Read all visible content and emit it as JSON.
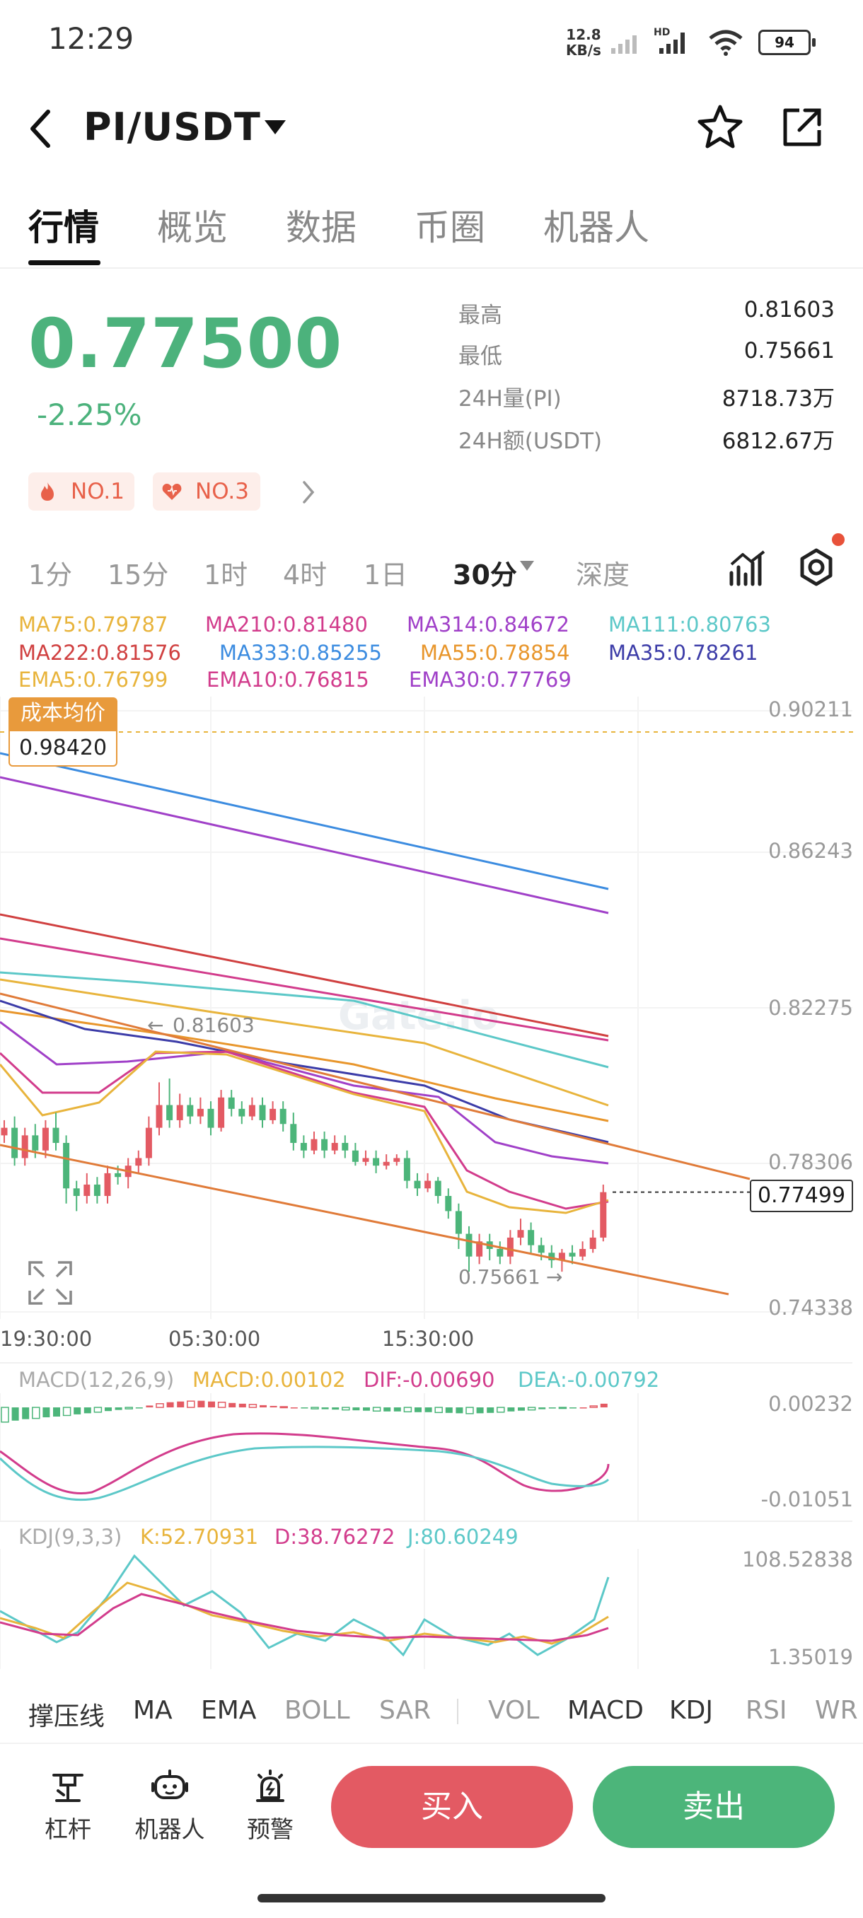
{
  "status_bar": {
    "time": "12:29",
    "net_speed_value": "12.8",
    "net_speed_unit": "KB/s",
    "battery": "94"
  },
  "header": {
    "pair": "PI/USDT"
  },
  "tabs": [
    "行情",
    "概览",
    "数据",
    "币圈",
    "机器人"
  ],
  "ticker": {
    "price": "0.77500",
    "change": "-2.25%",
    "stats": [
      {
        "label": "最高",
        "value": "0.81603"
      },
      {
        "label": "最低",
        "value": "0.75661"
      },
      {
        "label": "24H量(PI)",
        "value": "8718.73万"
      },
      {
        "label": "24H额(USDT)",
        "value": "6812.67万"
      }
    ],
    "badges": [
      "NO.1",
      "NO.3"
    ]
  },
  "timeframes": [
    "1分",
    "15分",
    "1时",
    "4时",
    "1日",
    "30分",
    "深度"
  ],
  "ma_legend": [
    {
      "text": "MA75:0.79787",
      "color": "#e8b43c"
    },
    {
      "text": "MA210:0.81480",
      "color": "#d23c8c"
    },
    {
      "text": "MA314:0.84672",
      "color": "#a040c8"
    },
    {
      "text": "MA111:0.80763",
      "color": "#5cc8c8"
    },
    {
      "text": "MA222:0.81576",
      "color": "#d04040"
    },
    {
      "text": "MA333:0.85255",
      "color": "#3c8ce0"
    },
    {
      "text": "MA55:0.78854",
      "color": "#e8962c"
    },
    {
      "text": "MA35:0.78261",
      "color": "#3c3ca8"
    },
    {
      "text": "EMA5:0.76799",
      "color": "#e8b43c"
    },
    {
      "text": "EMA10:0.76815",
      "color": "#d23c8c"
    },
    {
      "text": "EMA30:0.77769",
      "color": "#a040c8"
    }
  ],
  "chart_data": {
    "type": "candlestick",
    "y_axis_ticks": [
      "0.90211",
      "0.86243",
      "0.82275",
      "0.78306",
      "0.74338"
    ],
    "x_axis_ticks": [
      "19:30:00",
      "05:30:00",
      "15:30:00"
    ],
    "last_price": "0.77499",
    "cost_label": "成本均价",
    "cost_value": "0.98420",
    "high_marker": "0.81603",
    "low_marker": "0.75661",
    "watermark": "Gate.io",
    "candles": [
      {
        "o": 0.79,
        "c": 0.792,
        "h": 0.794,
        "l": 0.788
      },
      {
        "o": 0.792,
        "c": 0.784,
        "h": 0.795,
        "l": 0.782
      },
      {
        "o": 0.784,
        "c": 0.79,
        "h": 0.792,
        "l": 0.782
      },
      {
        "o": 0.79,
        "c": 0.786,
        "h": 0.793,
        "l": 0.784
      },
      {
        "o": 0.786,
        "c": 0.792,
        "h": 0.794,
        "l": 0.784
      },
      {
        "o": 0.792,
        "c": 0.788,
        "h": 0.796,
        "l": 0.786
      },
      {
        "o": 0.788,
        "c": 0.776,
        "h": 0.79,
        "l": 0.772
      },
      {
        "o": 0.776,
        "c": 0.774,
        "h": 0.778,
        "l": 0.77
      },
      {
        "o": 0.774,
        "c": 0.777,
        "h": 0.78,
        "l": 0.772
      },
      {
        "o": 0.777,
        "c": 0.774,
        "h": 0.779,
        "l": 0.772
      },
      {
        "o": 0.774,
        "c": 0.78,
        "h": 0.782,
        "l": 0.772
      },
      {
        "o": 0.78,
        "c": 0.779,
        "h": 0.782,
        "l": 0.777
      },
      {
        "o": 0.779,
        "c": 0.782,
        "h": 0.784,
        "l": 0.776
      },
      {
        "o": 0.782,
        "c": 0.784,
        "h": 0.786,
        "l": 0.78
      },
      {
        "o": 0.784,
        "c": 0.792,
        "h": 0.795,
        "l": 0.782
      },
      {
        "o": 0.792,
        "c": 0.798,
        "h": 0.804,
        "l": 0.79
      },
      {
        "o": 0.798,
        "c": 0.794,
        "h": 0.805,
        "l": 0.792
      },
      {
        "o": 0.794,
        "c": 0.798,
        "h": 0.801,
        "l": 0.792
      },
      {
        "o": 0.798,
        "c": 0.795,
        "h": 0.8,
        "l": 0.793
      },
      {
        "o": 0.795,
        "c": 0.797,
        "h": 0.8,
        "l": 0.793
      },
      {
        "o": 0.797,
        "c": 0.792,
        "h": 0.799,
        "l": 0.79
      },
      {
        "o": 0.792,
        "c": 0.8,
        "h": 0.802,
        "l": 0.791
      },
      {
        "o": 0.8,
        "c": 0.797,
        "h": 0.802,
        "l": 0.795
      },
      {
        "o": 0.797,
        "c": 0.795,
        "h": 0.799,
        "l": 0.793
      },
      {
        "o": 0.795,
        "c": 0.798,
        "h": 0.8,
        "l": 0.794
      },
      {
        "o": 0.798,
        "c": 0.794,
        "h": 0.8,
        "l": 0.792
      },
      {
        "o": 0.794,
        "c": 0.797,
        "h": 0.799,
        "l": 0.793
      },
      {
        "o": 0.797,
        "c": 0.793,
        "h": 0.799,
        "l": 0.791
      },
      {
        "o": 0.793,
        "c": 0.788,
        "h": 0.796,
        "l": 0.786
      },
      {
        "o": 0.788,
        "c": 0.786,
        "h": 0.79,
        "l": 0.784
      },
      {
        "o": 0.786,
        "c": 0.789,
        "h": 0.791,
        "l": 0.785
      },
      {
        "o": 0.789,
        "c": 0.786,
        "h": 0.791,
        "l": 0.784
      },
      {
        "o": 0.786,
        "c": 0.788,
        "h": 0.79,
        "l": 0.785
      },
      {
        "o": 0.788,
        "c": 0.786,
        "h": 0.79,
        "l": 0.784
      },
      {
        "o": 0.786,
        "c": 0.783,
        "h": 0.788,
        "l": 0.782
      },
      {
        "o": 0.783,
        "c": 0.784,
        "h": 0.786,
        "l": 0.782
      },
      {
        "o": 0.784,
        "c": 0.782,
        "h": 0.786,
        "l": 0.78
      },
      {
        "o": 0.782,
        "c": 0.783,
        "h": 0.785,
        "l": 0.781
      },
      {
        "o": 0.783,
        "c": 0.784,
        "h": 0.785,
        "l": 0.782
      },
      {
        "o": 0.784,
        "c": 0.778,
        "h": 0.786,
        "l": 0.776
      },
      {
        "o": 0.778,
        "c": 0.776,
        "h": 0.78,
        "l": 0.774
      },
      {
        "o": 0.776,
        "c": 0.778,
        "h": 0.78,
        "l": 0.775
      },
      {
        "o": 0.778,
        "c": 0.774,
        "h": 0.779,
        "l": 0.772
      },
      {
        "o": 0.774,
        "c": 0.77,
        "h": 0.776,
        "l": 0.768
      },
      {
        "o": 0.77,
        "c": 0.764,
        "h": 0.772,
        "l": 0.76
      },
      {
        "o": 0.764,
        "c": 0.758,
        "h": 0.766,
        "l": 0.754
      },
      {
        "o": 0.758,
        "c": 0.762,
        "h": 0.764,
        "l": 0.756
      },
      {
        "o": 0.762,
        "c": 0.76,
        "h": 0.764,
        "l": 0.757
      },
      {
        "o": 0.76,
        "c": 0.758,
        "h": 0.762,
        "l": 0.756
      },
      {
        "o": 0.758,
        "c": 0.763,
        "h": 0.765,
        "l": 0.756
      },
      {
        "o": 0.763,
        "c": 0.765,
        "h": 0.768,
        "l": 0.761
      },
      {
        "o": 0.765,
        "c": 0.761,
        "h": 0.767,
        "l": 0.759
      },
      {
        "o": 0.761,
        "c": 0.759,
        "h": 0.763,
        "l": 0.757
      },
      {
        "o": 0.759,
        "c": 0.757,
        "h": 0.761,
        "l": 0.755
      },
      {
        "o": 0.757,
        "c": 0.759,
        "h": 0.76,
        "l": 0.754
      },
      {
        "o": 0.759,
        "c": 0.758,
        "h": 0.761,
        "l": 0.756
      },
      {
        "o": 0.758,
        "c": 0.76,
        "h": 0.762,
        "l": 0.757
      },
      {
        "o": 0.76,
        "c": 0.763,
        "h": 0.765,
        "l": 0.759
      },
      {
        "o": 0.763,
        "c": 0.775,
        "h": 0.777,
        "l": 0.762
      }
    ],
    "macd_legend": [
      {
        "text": "MACD(12,26,9)",
        "color": "#aaaaaa"
      },
      {
        "text": "MACD:0.00102",
        "color": "#e8b43c"
      },
      {
        "text": "DIF:-0.00690",
        "color": "#d23c8c"
      },
      {
        "text": "DEA:-0.00792",
        "color": "#5cc8c8"
      }
    ],
    "macd_ticks": [
      "0.00232",
      "-0.01051"
    ],
    "macd_hist": [
      -0.004,
      -0.0036,
      -0.0032,
      -0.003,
      -0.0027,
      -0.0025,
      -0.0022,
      -0.0019,
      -0.0016,
      -0.0013,
      -0.001,
      -0.0007,
      -0.0004,
      -0.0001,
      0.0005,
      0.001,
      0.0014,
      0.0016,
      0.0017,
      0.0018,
      0.0016,
      0.0014,
      0.0012,
      0.001,
      0.0008,
      0.0006,
      0.0004,
      0.0002,
      0.0,
      -0.0002,
      -0.0004,
      -0.0005,
      -0.0006,
      -0.0007,
      -0.0008,
      -0.0009,
      -0.001,
      -0.0011,
      -0.0011,
      -0.0012,
      -0.0013,
      -0.0013,
      -0.0014,
      -0.0015,
      -0.0016,
      -0.0017,
      -0.0016,
      -0.0015,
      -0.0013,
      -0.0011,
      -0.0009,
      -0.0007,
      -0.0005,
      -0.0003,
      -0.0002,
      -0.0001,
      0.0,
      0.0004,
      0.001
    ],
    "kdj_legend": [
      {
        "text": "KDJ(9,3,3)",
        "color": "#aaaaaa"
      },
      {
        "text": "K:52.70931",
        "color": "#e8b43c"
      },
      {
        "text": "D:38.76272",
        "color": "#d23c8c"
      },
      {
        "text": "J:80.60249",
        "color": "#5cc8c8"
      }
    ],
    "kdj_ticks": [
      "108.52838",
      "1.35019"
    ]
  },
  "indicator_tabs": [
    "撑压线",
    "MA",
    "EMA",
    "BOLL",
    "SAR",
    "VOL",
    "MACD",
    "KDJ",
    "RSI",
    "WR"
  ],
  "bottom_nav": [
    {
      "label": "杠杆",
      "icon": "leverage-icon"
    },
    {
      "label": "机器人",
      "icon": "robot-icon"
    },
    {
      "label": "预警",
      "icon": "alarm-icon"
    }
  ],
  "actions": {
    "buy": "买入",
    "sell": "卖出"
  },
  "colors": {
    "up": "#e35a63",
    "down": "#4cb57a",
    "accent": "#4cb27c"
  }
}
